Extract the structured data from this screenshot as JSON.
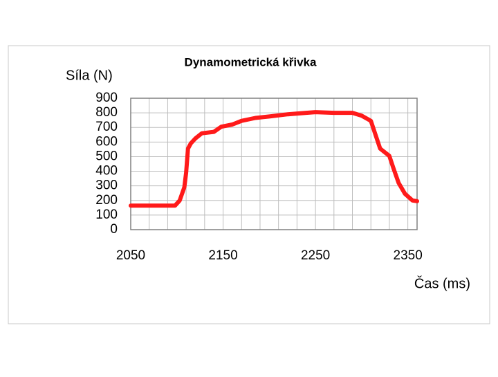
{
  "chart_data": {
    "type": "line",
    "title": "Dynamometrická křivka",
    "y_label": "Síla (N)",
    "x_label": "Čas (ms)",
    "x": [
      2050,
      2098,
      2103,
      2108,
      2110,
      2112,
      2115,
      2120,
      2127,
      2140,
      2148,
      2160,
      2170,
      2185,
      2200,
      2220,
      2240,
      2250,
      2270,
      2290,
      2300,
      2310,
      2315,
      2320,
      2330,
      2335,
      2340,
      2347,
      2355,
      2360
    ],
    "values": [
      165,
      165,
      200,
      290,
      390,
      555,
      590,
      625,
      660,
      670,
      705,
      720,
      745,
      765,
      775,
      790,
      800,
      805,
      800,
      800,
      780,
      745,
      650,
      555,
      505,
      410,
      320,
      245,
      200,
      195
    ],
    "color": "#ff1a1a",
    "xlim": [
      2050,
      2360
    ],
    "xticks": [
      2050,
      2150,
      2250,
      2350
    ],
    "xgrid": [
      2070,
      2090,
      2110,
      2130,
      2170,
      2190,
      2210,
      2230,
      2270,
      2290,
      2310,
      2330
    ],
    "ylim": [
      0,
      900
    ],
    "yticks": [
      0,
      100,
      200,
      300,
      400,
      500,
      600,
      700,
      800,
      900
    ],
    "grid": true
  }
}
